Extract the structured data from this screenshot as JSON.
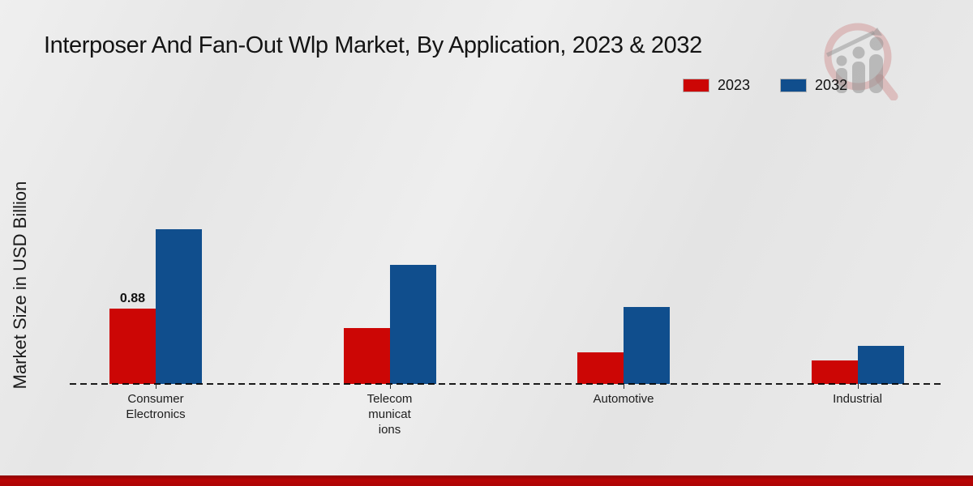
{
  "chart_data": {
    "type": "bar",
    "title": "Interposer And Fan-Out Wlp Market, By Application, 2023 & 2032",
    "ylabel": "Market Size in USD Billion",
    "xlabel": "",
    "categories": [
      "Consumer Electronics",
      "Telecommunications",
      "Automotive",
      "Industrial"
    ],
    "category_display_lines": [
      [
        "Consumer",
        "Electronics"
      ],
      [
        "Telecom",
        "municat",
        "ions"
      ],
      [
        "Automotive"
      ],
      [
        "Industrial"
      ]
    ],
    "series": [
      {
        "name": "2023",
        "color": "#cc0605",
        "values": [
          0.88,
          0.65,
          0.37,
          0.27
        ],
        "labels": [
          "0.88",
          "",
          "",
          ""
        ]
      },
      {
        "name": "2032",
        "color": "#104e8d",
        "values": [
          1.81,
          1.39,
          0.9,
          0.44
        ],
        "labels": [
          "",
          "",
          "",
          ""
        ]
      }
    ],
    "unit": "USD Billion",
    "ylim": [
      0,
      2
    ],
    "grid": false,
    "legend_position": "top-right",
    "baseline_style": "dashed",
    "data_label_shown": "0.88 on Consumer Electronics 2023 bar"
  },
  "footer": {
    "accent_color": "#b80505"
  },
  "logo": {
    "name": "market-research-watermark"
  }
}
